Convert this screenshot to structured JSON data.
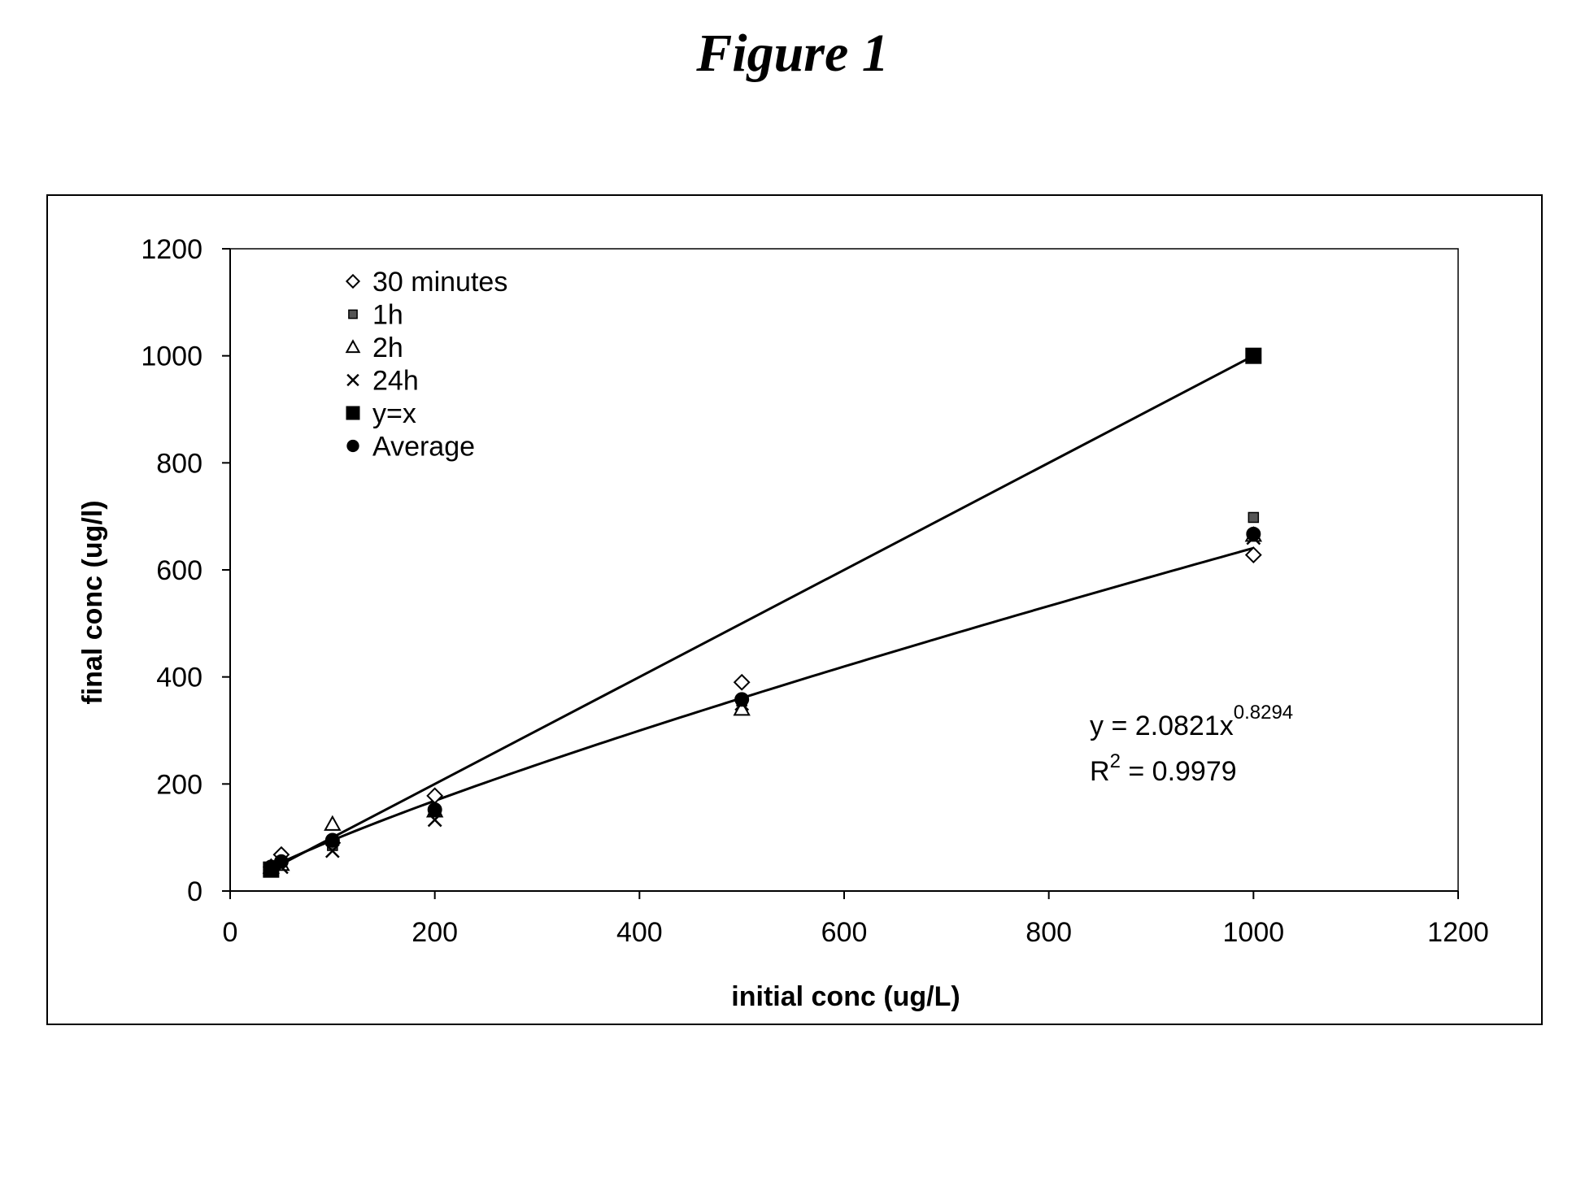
{
  "figure_title": "Figure 1",
  "colors": {
    "ink": "#000000",
    "paper": "#ffffff",
    "one_h_marker": "#555555"
  },
  "chart_data": {
    "type": "scatter",
    "xlabel": "initial conc (ug/L)",
    "ylabel": "final conc (ug/l)",
    "xlim": [
      0,
      1200
    ],
    "ylim": [
      0,
      1200
    ],
    "x_ticks": [
      0,
      200,
      400,
      600,
      800,
      1000,
      1200
    ],
    "y_ticks": [
      0,
      200,
      400,
      600,
      800,
      1000,
      1200
    ],
    "x_tick_labels": [
      "0",
      "200",
      "400",
      "600",
      "800",
      "1000",
      "1200"
    ],
    "y_tick_labels": [
      "0",
      "200",
      "400",
      "600",
      "800",
      "1000",
      "1200"
    ],
    "grid": false,
    "legend_position": "top-left",
    "series": [
      {
        "name": "30 minutes",
        "marker": "open-diamond",
        "points": [
          [
            40,
            45
          ],
          [
            50,
            68
          ],
          [
            100,
            90
          ],
          [
            200,
            178
          ],
          [
            500,
            390
          ],
          [
            1000,
            628
          ]
        ]
      },
      {
        "name": "1h",
        "marker": "small-gray-square",
        "points": [
          [
            40,
            42
          ],
          [
            50,
            55
          ],
          [
            100,
            85
          ],
          [
            200,
            150
          ],
          [
            500,
            355
          ],
          [
            1000,
            698
          ]
        ]
      },
      {
        "name": "2h",
        "marker": "open-triangle",
        "points": [
          [
            40,
            45
          ],
          [
            50,
            50
          ],
          [
            100,
            125
          ],
          [
            200,
            150
          ],
          [
            500,
            340
          ],
          [
            1000,
            665
          ]
        ]
      },
      {
        "name": "24h",
        "marker": "x",
        "points": [
          [
            40,
            40
          ],
          [
            50,
            45
          ],
          [
            100,
            75
          ],
          [
            200,
            133
          ],
          [
            500,
            350
          ],
          [
            1000,
            660
          ]
        ]
      },
      {
        "name": "y=x",
        "marker": "filled-square",
        "line": true,
        "points": [
          [
            40,
            40
          ],
          [
            1000,
            1000
          ]
        ]
      },
      {
        "name": "Average",
        "marker": "filled-circle",
        "points": [
          [
            40,
            45
          ],
          [
            50,
            55
          ],
          [
            100,
            95
          ],
          [
            200,
            152
          ],
          [
            500,
            358
          ],
          [
            1000,
            667
          ]
        ]
      }
    ],
    "trendline": {
      "type": "power",
      "a": 2.0821,
      "b": 0.8294,
      "x_range": [
        40,
        1000
      ],
      "equation_base": "y = 2.0821x",
      "equation_exponent": "0.8294",
      "r2_prefix": "R",
      "r2_superscript": "2",
      "r2_suffix": " = 0.9979"
    }
  }
}
